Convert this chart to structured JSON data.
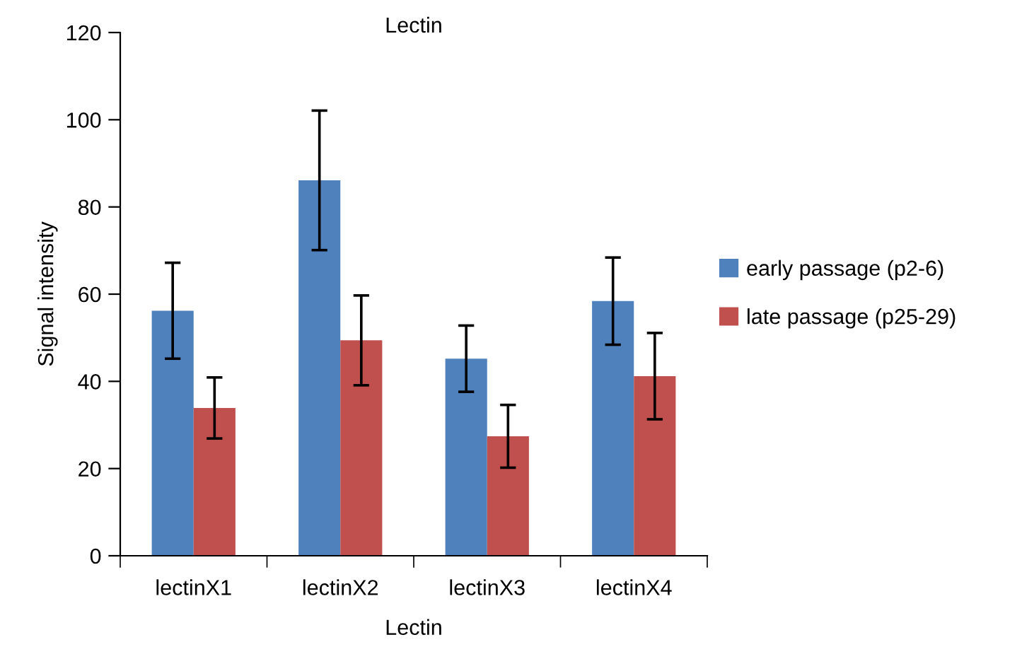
{
  "chart_data": {
    "type": "bar",
    "title": "Lectin",
    "xlabel": "Lectin",
    "ylabel": "Signal intensity",
    "categories": [
      "lectinX1",
      "lectinX2",
      "lectinX3",
      "lectinX4"
    ],
    "series": [
      {
        "name": "early passage (p2-6)",
        "color": "#4f81bd",
        "values": [
          56.2,
          86.1,
          45.2,
          58.4
        ],
        "errors": [
          11,
          16,
          7.6,
          10
        ]
      },
      {
        "name": "late passage (p25-29)",
        "color": "#c0504d",
        "values": [
          33.9,
          49.4,
          27.4,
          41.2
        ],
        "errors": [
          7,
          10.3,
          7.2,
          9.9
        ]
      }
    ],
    "ylim": [
      0,
      120
    ],
    "yticks": [
      0,
      20,
      40,
      60,
      80,
      100,
      120
    ],
    "grid": false,
    "legend": "right"
  }
}
